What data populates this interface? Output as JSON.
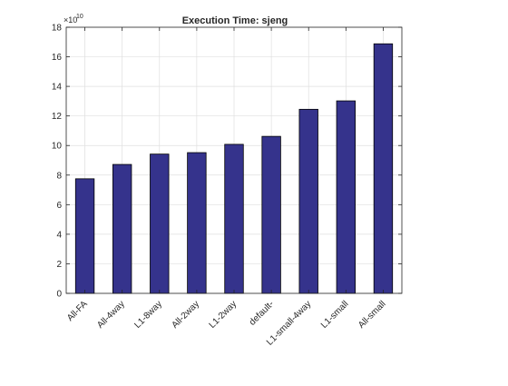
{
  "chart_data": {
    "type": "bar",
    "title": "Execution Time: sjeng",
    "xlabel": "",
    "ylabel": "",
    "y_exponent_label": "×10",
    "y_exponent": "10",
    "categories": [
      "All-FA",
      "All-4way",
      "L1-8way",
      "All-2way",
      "L1-2way",
      "default-",
      "L1-small-4way",
      "L1-small",
      "All-small"
    ],
    "values": [
      7.75,
      8.72,
      9.42,
      9.52,
      10.08,
      10.62,
      12.45,
      13.02,
      16.88
    ],
    "ylim": [
      0,
      18
    ],
    "yticks": [
      0,
      2,
      4,
      6,
      8,
      10,
      12,
      14,
      16,
      18
    ],
    "grid": true,
    "bar_color": "#35338c",
    "edge_color": "#000000"
  }
}
